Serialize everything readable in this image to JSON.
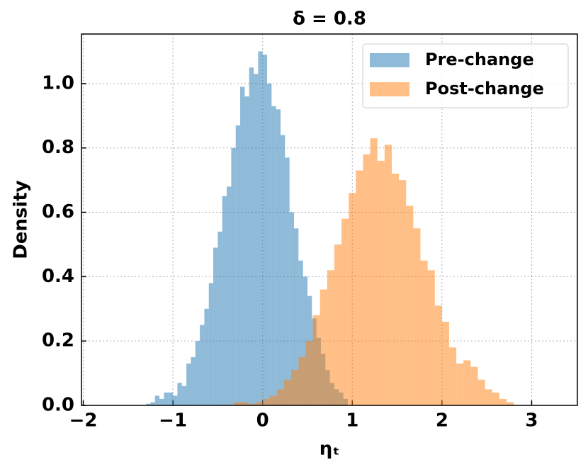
{
  "chart_data": {
    "type": "histogram",
    "title": "δ = 0.8",
    "xlabel": "ηₜ",
    "ylabel": "Density",
    "xlim": [
      -2.02,
      3.51
    ],
    "ylim": [
      0,
      1.154
    ],
    "xticks": [
      {
        "value": -2,
        "label": "−2"
      },
      {
        "value": -1,
        "label": "−1"
      },
      {
        "value": 0,
        "label": "0"
      },
      1,
      2,
      3
    ],
    "yticks": [
      {
        "value": 0,
        "label": "0.0"
      },
      0.2,
      0.4,
      0.6,
      0.8,
      {
        "value": 1,
        "label": "1.0"
      }
    ],
    "grid": true,
    "legend": "upper right",
    "opacity": 0.5,
    "series": [
      {
        "name": "Pre-change",
        "color": "#1f77b4",
        "bins": [
          -1.3,
          -1.25,
          -1.2,
          -1.15,
          -1.1,
          -1.05,
          -1.0,
          -0.95,
          -0.9,
          -0.85,
          -0.8,
          -0.75,
          -0.7,
          -0.65,
          -0.6,
          -0.55,
          -0.5,
          -0.45,
          -0.4,
          -0.35,
          -0.3,
          -0.25,
          -0.2,
          -0.15,
          -0.1,
          -0.05,
          0.0,
          0.05,
          0.1,
          0.15,
          0.2,
          0.25,
          0.3,
          0.35,
          0.4,
          0.45,
          0.5,
          0.55,
          0.6,
          0.65,
          0.7,
          0.75,
          0.8,
          0.85,
          0.9,
          0.95
        ],
        "values": [
          0.005,
          0.01,
          0.03,
          0.02,
          0.04,
          0.04,
          0.03,
          0.07,
          0.06,
          0.13,
          0.15,
          0.2,
          0.25,
          0.3,
          0.38,
          0.49,
          0.54,
          0.65,
          0.68,
          0.8,
          0.87,
          0.99,
          0.96,
          1.05,
          1.03,
          1.1,
          1.09,
          1.0,
          0.93,
          0.92,
          0.84,
          0.77,
          0.6,
          0.55,
          0.45,
          0.4,
          0.34,
          0.27,
          0.21,
          0.16,
          0.11,
          0.07,
          0.05,
          0.04,
          0.02
        ]
      },
      {
        "name": "Post-change",
        "color": "#ff7f0e",
        "bins": [
          -0.4,
          -0.32,
          -0.24,
          -0.16,
          -0.08,
          0.0,
          0.08,
          0.16,
          0.24,
          0.32,
          0.4,
          0.48,
          0.56,
          0.64,
          0.72,
          0.8,
          0.88,
          0.96,
          1.04,
          1.12,
          1.2,
          1.28,
          1.36,
          1.44,
          1.52,
          1.6,
          1.68,
          1.76,
          1.84,
          1.92,
          2.0,
          2.08,
          2.16,
          2.24,
          2.32,
          2.4,
          2.48,
          2.56,
          2.64,
          2.72,
          2.8
        ],
        "values": [
          0.002,
          0.01,
          0.01,
          0.005,
          0.01,
          0.02,
          0.03,
          0.05,
          0.08,
          0.11,
          0.15,
          0.2,
          0.28,
          0.36,
          0.42,
          0.5,
          0.58,
          0.66,
          0.73,
          0.78,
          0.83,
          0.76,
          0.81,
          0.72,
          0.7,
          0.62,
          0.55,
          0.45,
          0.42,
          0.31,
          0.26,
          0.18,
          0.13,
          0.14,
          0.12,
          0.08,
          0.05,
          0.04,
          0.02,
          0.01
        ]
      }
    ]
  }
}
